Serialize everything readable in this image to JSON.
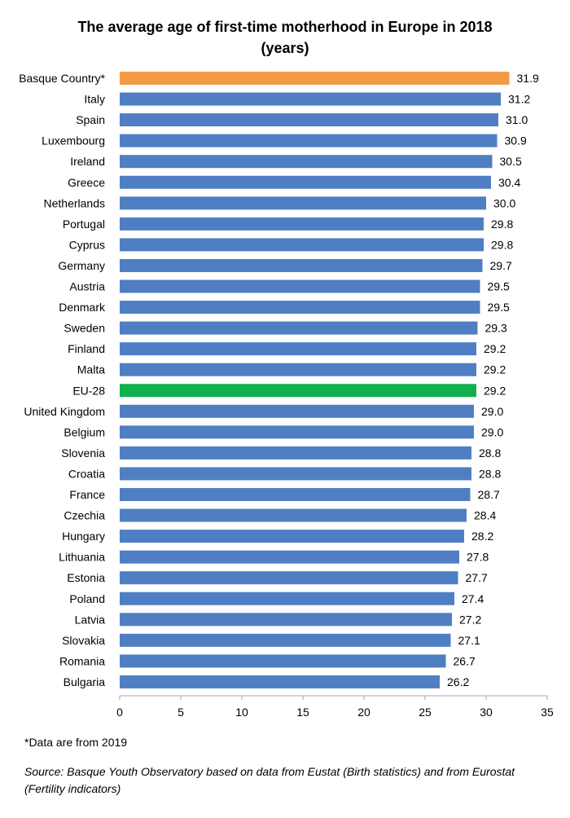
{
  "title_line1": "The average age of first-time motherhood in Europe in 2018",
  "title_line2": "(years)",
  "footnote": "*Data are from 2019",
  "source": "Source: Basque Youth Observatory based on data from Eustat (Birth statistics) and from Eurostat (Fertility indicators)",
  "colors": {
    "default_bar": "#4f7fc2",
    "highlight_basque": "#f39a45",
    "highlight_eu": "#10b04f",
    "axis": "#a6a6a6"
  },
  "chart_data": {
    "type": "bar",
    "orientation": "horizontal",
    "title": "The average age of first-time motherhood in Europe in 2018 (years)",
    "categories": [
      "Basque Country*",
      "Italy",
      "Spain",
      "Luxembourg",
      "Ireland",
      "Greece",
      "Netherlands",
      "Portugal",
      "Cyprus",
      "Germany",
      "Austria",
      "Denmark",
      "Sweden",
      "Finland",
      "Malta",
      "EU-28",
      "United Kingdom",
      "Belgium",
      "Slovenia",
      "Croatia",
      "France",
      "Czechia",
      "Hungary",
      "Lithuania",
      "Estonia",
      "Poland",
      "Latvia",
      "Slovakia",
      "Romania",
      "Bulgaria"
    ],
    "values": [
      31.9,
      31.2,
      31.0,
      30.9,
      30.5,
      30.4,
      30.0,
      29.8,
      29.8,
      29.7,
      29.5,
      29.5,
      29.3,
      29.2,
      29.2,
      29.2,
      29.0,
      29.0,
      28.8,
      28.8,
      28.7,
      28.4,
      28.2,
      27.8,
      27.7,
      27.4,
      27.2,
      27.1,
      26.7,
      26.2
    ],
    "value_labels": [
      "31.9",
      "31.2",
      "31.0",
      "30.9",
      "30.5",
      "30.4",
      "30.0",
      "29.8",
      "29.8",
      "29.7",
      "29.5",
      "29.5",
      "29.3",
      "29.2",
      "29.2",
      "29.2",
      "29.0",
      "29.0",
      "28.8",
      "28.8",
      "28.7",
      "28.4",
      "28.2",
      "27.8",
      "27.7",
      "27.4",
      "27.2",
      "27.1",
      "26.7",
      "26.2"
    ],
    "bar_colors": [
      "#f39a45",
      "#4f7fc2",
      "#4f7fc2",
      "#4f7fc2",
      "#4f7fc2",
      "#4f7fc2",
      "#4f7fc2",
      "#4f7fc2",
      "#4f7fc2",
      "#4f7fc2",
      "#4f7fc2",
      "#4f7fc2",
      "#4f7fc2",
      "#4f7fc2",
      "#4f7fc2",
      "#10b04f",
      "#4f7fc2",
      "#4f7fc2",
      "#4f7fc2",
      "#4f7fc2",
      "#4f7fc2",
      "#4f7fc2",
      "#4f7fc2",
      "#4f7fc2",
      "#4f7fc2",
      "#4f7fc2",
      "#4f7fc2",
      "#4f7fc2",
      "#4f7fc2",
      "#4f7fc2"
    ],
    "xlim": [
      0,
      35
    ],
    "xticks": [
      0,
      5,
      10,
      15,
      20,
      25,
      30,
      35
    ],
    "grid": false,
    "legend": "none"
  }
}
